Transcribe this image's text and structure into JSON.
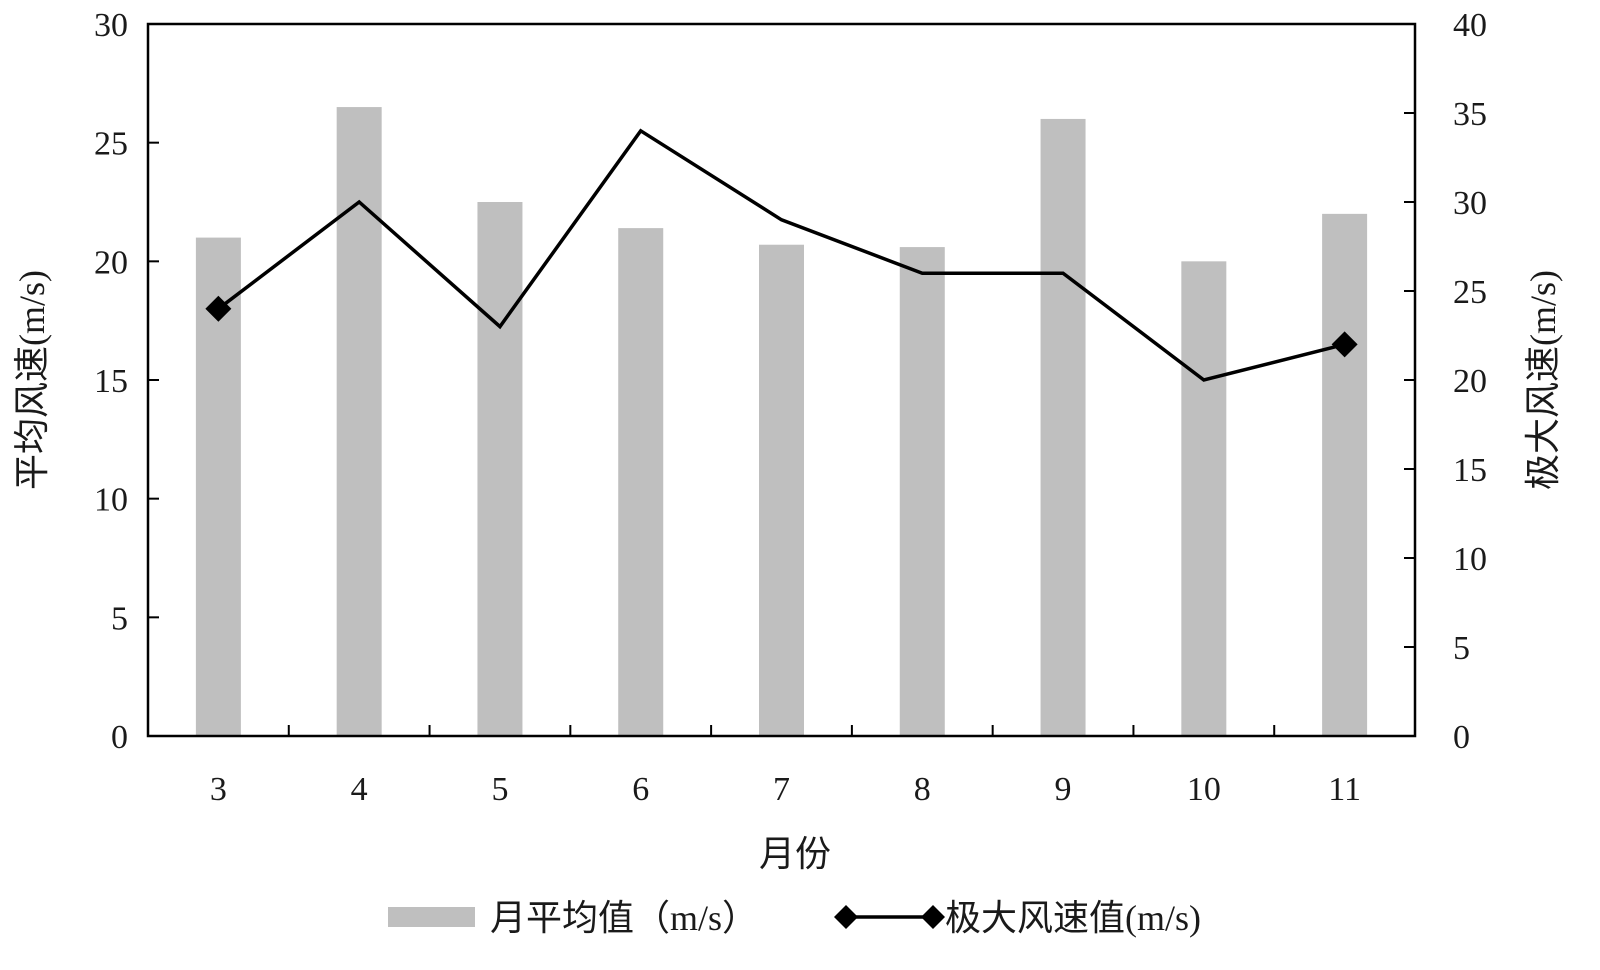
{
  "chart_data": {
    "type": "bar+line",
    "title": "",
    "xlabel": "月份",
    "ylabel_left": "平均风速(m/s)",
    "ylabel_right": "极大风速(m/s)",
    "categories": [
      "3",
      "4",
      "5",
      "6",
      "7",
      "8",
      "9",
      "10",
      "11"
    ],
    "ylim_left": [
      0,
      30
    ],
    "yticks_left": [
      0,
      5,
      10,
      15,
      20,
      25,
      30
    ],
    "ylim_right": [
      0,
      40
    ],
    "yticks_right": [
      0,
      5,
      10,
      15,
      20,
      25,
      30,
      35,
      40
    ],
    "grid": false,
    "legend_position": "bottom",
    "series": [
      {
        "name": "月平均值（m/s）",
        "type": "bar",
        "axis": "left",
        "color": "#bfbfbf",
        "values": [
          21.0,
          26.5,
          22.5,
          21.4,
          20.7,
          20.6,
          26.0,
          20.0,
          22.0
        ]
      },
      {
        "name": "极大风速值(m/s)",
        "type": "line",
        "axis": "right",
        "color": "#000000",
        "marker": "diamond",
        "values": [
          24,
          30,
          23,
          34,
          29,
          26,
          26,
          20,
          22
        ]
      }
    ]
  }
}
